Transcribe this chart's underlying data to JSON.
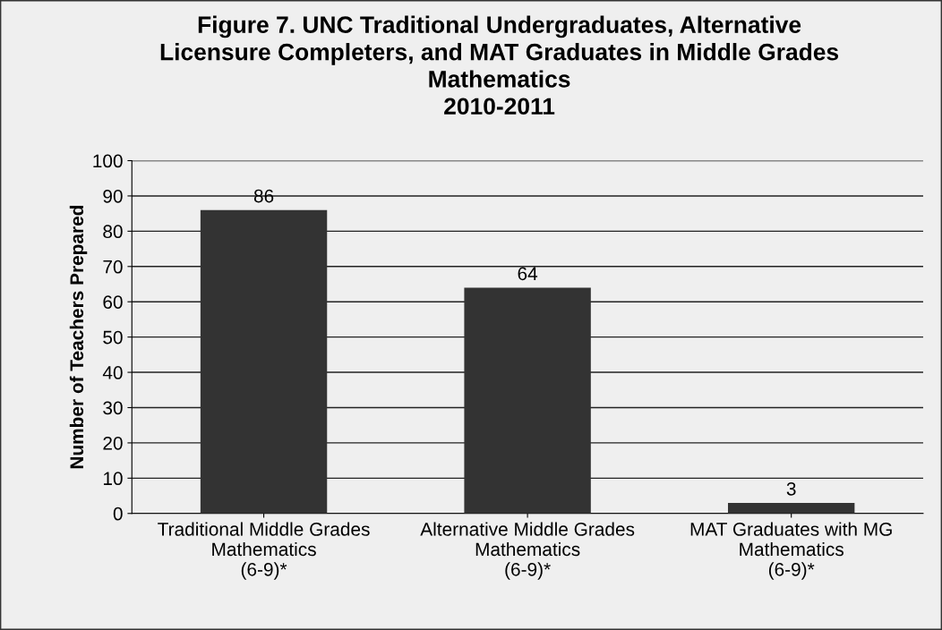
{
  "chart_data": {
    "type": "bar",
    "title": "Figure 7. UNC Traditional Undergraduates, Alternative\nLicensure Completers, and MAT Graduates in Middle Grades\nMathematics\n2010-2011",
    "ylabel": "Number of Teachers Prepared",
    "categories": [
      "Traditional Middle Grades\nMathematics\n(6-9)*",
      "Alternative Middle Grades\nMathematics\n(6-9)*",
      "MAT Graduates with MG\nMathematics\n(6-9)*"
    ],
    "values": [
      86,
      64,
      3
    ],
    "color": "#333333",
    "ylim": [
      0,
      100
    ],
    "yticks": [
      0,
      10,
      20,
      30,
      40,
      50,
      60,
      70,
      80,
      90,
      100
    ],
    "grid": "y",
    "data_labels": true
  }
}
